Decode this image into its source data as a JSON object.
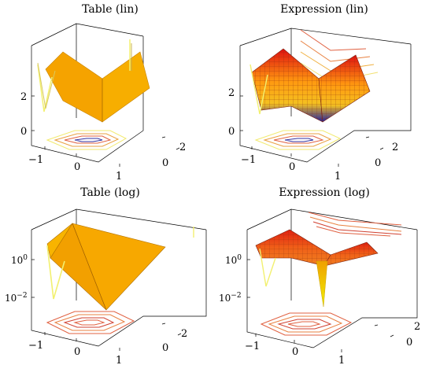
{
  "chart_data": [
    {
      "type": "surface3d",
      "title": "Table (lin)",
      "zscale": "linear",
      "render": "flat",
      "xticks": [
        "−1",
        "0",
        "1"
      ],
      "yticks": [
        "0",
        "2"
      ],
      "zticks": [
        "0",
        "2"
      ],
      "xlim": [
        -1.3,
        1.3
      ],
      "ylim": [
        -0.5,
        2.8
      ],
      "zlim": [
        -0.6,
        3.3
      ],
      "contours_on_floor": true,
      "grid": false
    },
    {
      "type": "surface3d",
      "title": "Expression (lin)",
      "zscale": "linear",
      "render": "mesh",
      "xticks": [
        "−1",
        "0",
        "1"
      ],
      "yticks": [
        "0",
        "2"
      ],
      "zticks": [
        "0",
        "2"
      ],
      "xlim": [
        -1.3,
        1.3
      ],
      "ylim": [
        -0.5,
        2.8
      ],
      "zlim": [
        -0.6,
        3.3
      ],
      "contours_on_floor": true,
      "grid": false
    },
    {
      "type": "surface3d",
      "title": "Table (log)",
      "zscale": "log",
      "render": "flat",
      "xticks": [
        "−1",
        "0",
        "1"
      ],
      "yticks": [
        "0",
        "2"
      ],
      "zticks": [
        "10^0",
        "10^-2"
      ],
      "xlim": [
        -1.3,
        1.3
      ],
      "ylim": [
        -0.5,
        2.8
      ],
      "contours_on_floor": true,
      "grid": false
    },
    {
      "type": "surface3d",
      "title": "Expression (log)",
      "zscale": "log",
      "render": "mesh",
      "xticks": [
        "−1",
        "0",
        "1"
      ],
      "yticks": [
        "0",
        "2"
      ],
      "zticks": [
        "10^0",
        "10^-2"
      ],
      "xlim": [
        -1.3,
        1.3
      ],
      "ylim": [
        -0.5,
        2.8
      ],
      "contours_on_floor": true,
      "grid": false
    }
  ],
  "colors": {
    "flat_fill": "#f7a800",
    "flat_fill_log": "#f59a00",
    "mesh_high": "#e01010",
    "mesh_mid": "#ff9a10",
    "mesh_low_lin": "#2020a0",
    "mesh_low_log": "#f0f000",
    "contour_pale": "#f2f070",
    "contour_warm": "#e06040",
    "contour_blue": "#3030a0"
  }
}
